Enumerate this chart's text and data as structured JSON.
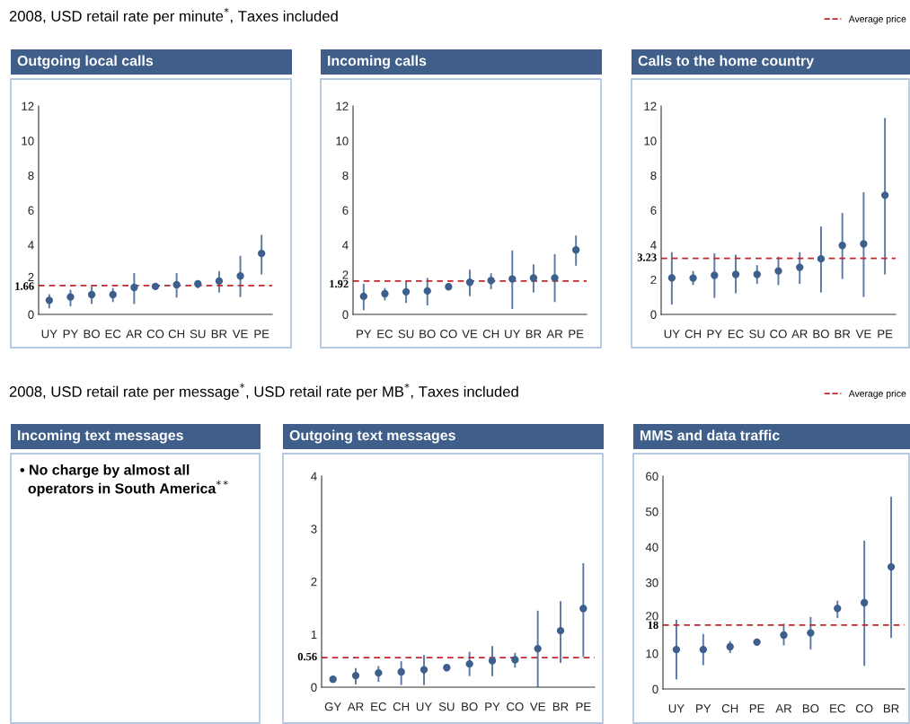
{
  "chart_data": [
    {
      "type": "scatter",
      "subtitle": "2008, USD retail rate per minute$^{*}$, Taxes included",
      "title": "Outgoing local calls",
      "categories": [
        "UY",
        "PY",
        "BO",
        "EC",
        "AR",
        "CO",
        "CH",
        "SU",
        "BR",
        "VE",
        "PE"
      ],
      "color": "#3d5f8c",
      "marker": "circle",
      "values": [
        0.81,
        1.0,
        1.14,
        1.14,
        1.55,
        1.61,
        1.71,
        1.76,
        1.92,
        2.21,
        3.51
      ],
      "errors": [
        [
          0.35,
          1.16
        ],
        [
          0.47,
          1.42
        ],
        [
          0.6,
          1.61
        ],
        [
          0.71,
          1.52
        ],
        [
          0.6,
          2.38
        ],
        null,
        [
          0.97,
          2.38
        ],
        [
          1.5,
          1.93
        ],
        [
          1.26,
          2.49
        ],
        [
          1.0,
          3.37
        ],
        [
          2.3,
          4.58
        ]
      ],
      "ylim": [
        0,
        12
      ],
      "yticks": [
        0,
        1.66,
        2,
        4,
        6,
        8,
        10,
        12
      ],
      "ref_lines": [
        {
          "axis": "y",
          "value": 1.66,
          "color": "#c0282d",
          "line_style": "dashed"
        }
      ]
    },
    {
      "type": "scatter",
      "title": "Incoming calls",
      "categories": [
        "PY",
        "EC",
        "SU",
        "BO",
        "CO",
        "VE",
        "CH",
        "UY",
        "BR",
        "AR",
        "PE"
      ],
      "color": "#3d5f8c",
      "marker": "circle",
      "values": [
        1.04,
        1.19,
        1.3,
        1.35,
        1.59,
        1.85,
        1.95,
        2.04,
        2.1,
        2.1,
        3.71
      ],
      "errors": [
        [
          0.24,
          1.76
        ],
        [
          0.81,
          1.52
        ],
        [
          0.66,
          1.93
        ],
        [
          0.52,
          2.1
        ],
        null,
        [
          1.05,
          2.57
        ],
        [
          1.45,
          2.37
        ],
        [
          0.31,
          3.68
        ],
        [
          1.26,
          2.88
        ],
        [
          0.71,
          3.47
        ],
        [
          2.8,
          4.54
        ]
      ],
      "ylim": [
        0,
        12
      ],
      "yticks": [
        0,
        1.92,
        2,
        4,
        6,
        8,
        10,
        12
      ],
      "ref_lines": [
        {
          "axis": "y",
          "value": 1.92,
          "color": "#c0282d",
          "line_style": "dashed"
        }
      ]
    },
    {
      "type": "scatter",
      "title": "Calls to the home country",
      "categories": [
        "UY",
        "CH",
        "PY",
        "EC",
        "SU",
        "CO",
        "AR",
        "BO",
        "BR",
        "VE",
        "PE"
      ],
      "color": "#3d5f8c",
      "marker": "circle",
      "values": [
        2.1,
        2.09,
        2.25,
        2.3,
        2.3,
        2.5,
        2.71,
        3.2,
        3.97,
        4.06,
        6.86
      ],
      "errors": [
        [
          0.57,
          3.58
        ],
        [
          1.69,
          2.5
        ],
        [
          0.95,
          3.52
        ],
        [
          1.21,
          3.44
        ],
        [
          1.76,
          2.83
        ],
        [
          1.69,
          3.32
        ],
        [
          1.76,
          3.58
        ],
        [
          1.26,
          5.06
        ],
        [
          2.04,
          5.84
        ],
        [
          1.0,
          7.03
        ],
        [
          2.3,
          11.31
        ]
      ],
      "ylim": [
        0,
        12
      ],
      "yticks": [
        0,
        2,
        3.23,
        4,
        6,
        8,
        10,
        12
      ],
      "ref_lines": [
        {
          "axis": "y",
          "value": 3.23,
          "label": "Average price",
          "color": "#c0282d",
          "line_style": "dashed"
        }
      ],
      "legend": "top right"
    },
    {
      "type": "other",
      "subtitle": "2008, USD retail rate per message$^{*}$, USD retail rate per MB$^{*}$, Taxes included",
      "title": "Incoming text messages",
      "annotations": [
        "• No charge by almost all\n  operators in South America$^{**}$"
      ]
    },
    {
      "type": "scatter",
      "title": "Outgoing text messages",
      "categories": [
        "GY",
        "AR",
        "EC",
        "CH",
        "UY",
        "SU",
        "BO",
        "PY",
        "CO",
        "VE",
        "BR",
        "PE"
      ],
      "color": "#3d5f8c",
      "marker": "circle",
      "values": [
        0.15,
        0.22,
        0.27,
        0.29,
        0.33,
        0.37,
        0.44,
        0.5,
        0.52,
        0.73,
        1.07,
        1.49
      ],
      "errors": [
        null,
        [
          0.05,
          0.36
        ],
        [
          0.1,
          0.4
        ],
        [
          0.04,
          0.49
        ],
        [
          0.04,
          0.61
        ],
        [
          0.3,
          0.41
        ],
        [
          0.21,
          0.67
        ],
        [
          0.21,
          0.78
        ],
        [
          0.37,
          0.65
        ],
        [
          0,
          1.45
        ],
        [
          0.46,
          1.63
        ],
        [
          0.58,
          2.35
        ]
      ],
      "ylim": [
        0,
        4
      ],
      "yticks": [
        0,
        0.56,
        1,
        2,
        3,
        4
      ],
      "ref_lines": [
        {
          "axis": "y",
          "value": 0.56,
          "color": "#c0282d",
          "line_style": "dashed"
        }
      ]
    },
    {
      "type": "scatter",
      "title": "MMS and data traffic",
      "categories": [
        "UY",
        "PY",
        "CH",
        "PE",
        "AR",
        "BO",
        "EC",
        "CO",
        "BR"
      ],
      "color": "#3d5f8c",
      "marker": "circle",
      "values": [
        11.1,
        11.1,
        11.9,
        13.2,
        15.2,
        15.8,
        22.7,
        24.3,
        34.4
      ],
      "errors": [
        [
          2.7,
          19.5
        ],
        [
          6.7,
          15.5
        ],
        [
          10.1,
          13.5
        ],
        null,
        [
          12.3,
          18.4
        ],
        [
          11.1,
          20.3
        ],
        [
          20.0,
          24.9
        ],
        [
          6.5,
          41.8
        ],
        [
          14.4,
          54.2
        ]
      ],
      "ylim": [
        0,
        60
      ],
      "yticks": [
        0,
        10,
        18,
        20,
        30,
        40,
        50,
        60
      ],
      "ref_lines": [
        {
          "axis": "y",
          "value": 18,
          "label": "Average price",
          "color": "#c0282d",
          "line_style": "dashed"
        }
      ],
      "legend": "top right"
    }
  ]
}
